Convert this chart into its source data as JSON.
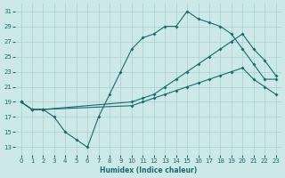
{
  "xlabel": "Humidex (Indice chaleur)",
  "ylabel": "",
  "bg_color": "#cce8e8",
  "grid_color": "#aacfcf",
  "line_color": "#1a6b6b",
  "xlim": [
    -0.5,
    23.5
  ],
  "ylim": [
    12,
    32
  ],
  "yticks": [
    13,
    15,
    17,
    19,
    21,
    23,
    25,
    27,
    29,
    31
  ],
  "xticks": [
    0,
    1,
    2,
    3,
    4,
    5,
    6,
    7,
    8,
    9,
    10,
    11,
    12,
    13,
    14,
    15,
    16,
    17,
    18,
    19,
    20,
    21,
    22,
    23
  ],
  "line1_x": [
    0,
    1,
    2,
    3,
    4,
    5,
    6,
    7,
    8,
    9,
    10,
    11,
    12,
    13,
    14,
    15,
    16,
    17,
    18,
    19,
    20,
    21,
    22,
    23
  ],
  "line1_y": [
    19,
    18,
    18,
    17,
    15,
    14,
    13,
    17,
    20,
    23,
    26,
    27.5,
    28,
    29,
    29,
    31,
    30,
    29.5,
    29,
    28,
    26,
    24,
    22,
    22
  ],
  "line2_x": [
    0,
    1,
    2,
    10,
    11,
    12,
    13,
    14,
    15,
    16,
    17,
    18,
    19,
    20,
    21,
    22,
    23
  ],
  "line2_y": [
    19,
    18,
    18,
    19,
    19.5,
    20,
    21,
    22,
    23,
    24,
    25,
    26,
    27,
    28,
    26,
    24.5,
    22.5
  ],
  "line3_x": [
    0,
    1,
    2,
    10,
    11,
    12,
    13,
    14,
    15,
    16,
    17,
    18,
    19,
    20,
    21,
    22,
    23
  ],
  "line3_y": [
    19,
    18,
    18,
    18.5,
    19,
    19.5,
    20,
    20.5,
    21,
    21.5,
    22,
    22.5,
    23,
    23.5,
    22,
    21,
    20
  ]
}
